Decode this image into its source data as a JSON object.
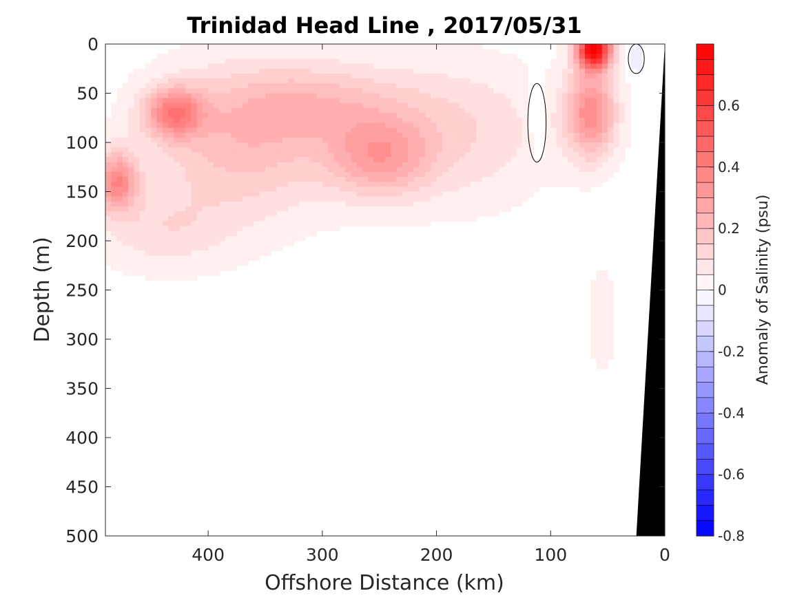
{
  "chart_data": {
    "type": "heatmap",
    "title": "Trinidad Head Line , 2017/05/31",
    "xlabel": "Offshore Distance (km)",
    "ylabel": "Depth (m)",
    "xlim": [
      490,
      0
    ],
    "ylim": [
      0,
      500
    ],
    "x_reversed": true,
    "y_reversed": true,
    "xticks": [
      "400",
      "300",
      "200",
      "100",
      "0"
    ],
    "xtick_values": [
      400,
      300,
      200,
      100,
      0
    ],
    "yticks": [
      "0",
      "50",
      "100",
      "150",
      "200",
      "250",
      "300",
      "350",
      "400",
      "450",
      "500"
    ],
    "ytick_values": [
      0,
      50,
      100,
      150,
      200,
      250,
      300,
      350,
      400,
      450,
      500
    ],
    "colorbar": {
      "label": "Anomaly of Salinity (psu)",
      "range": [
        -0.8,
        0.8
      ],
      "step": 0.05,
      "tick_labels": [
        "0.6",
        "0.4",
        "0.2",
        "0",
        "-0.2",
        "-0.4",
        "-0.6",
        "-0.8"
      ],
      "tick_values": [
        0.6,
        0.4,
        0.2,
        0,
        -0.2,
        -0.4,
        -0.6,
        -0.8
      ],
      "low_color": "#0000ff",
      "mid_color": "#ffffff",
      "high_color": "#ff0000"
    },
    "field_blobs": [
      {
        "x": 430,
        "y": 70,
        "value": 0.35,
        "rx": 25,
        "ry": 25
      },
      {
        "x": 480,
        "y": 140,
        "value": 0.35,
        "rx": 18,
        "ry": 30
      },
      {
        "x": 370,
        "y": 100,
        "value": 0.2,
        "rx": 80,
        "ry": 75
      },
      {
        "x": 250,
        "y": 115,
        "value": 0.25,
        "rx": 45,
        "ry": 40
      },
      {
        "x": 300,
        "y": 60,
        "value": 0.15,
        "rx": 80,
        "ry": 40
      },
      {
        "x": 180,
        "y": 90,
        "value": 0.12,
        "rx": 80,
        "ry": 70
      },
      {
        "x": 440,
        "y": 190,
        "value": 0.1,
        "rx": 60,
        "ry": 40
      },
      {
        "x": 62,
        "y": 5,
        "value": 0.8,
        "rx": 15,
        "ry": 20
      },
      {
        "x": 65,
        "y": 70,
        "value": 0.35,
        "rx": 22,
        "ry": 45
      },
      {
        "x": 55,
        "y": 280,
        "value": 0.07,
        "rx": 12,
        "ry": 50
      },
      {
        "x": 112,
        "y": 80,
        "value": -0.07,
        "rx": 8,
        "ry": 40
      },
      {
        "x": 25,
        "y": 15,
        "value": -0.07,
        "rx": 7,
        "ry": 15
      }
    ],
    "bathymetry": [
      [
        490,
        500
      ],
      [
        0,
        500
      ],
      [
        0,
        0
      ],
      [
        25,
        500
      ]
    ],
    "bathymetry_color": "#000000"
  }
}
